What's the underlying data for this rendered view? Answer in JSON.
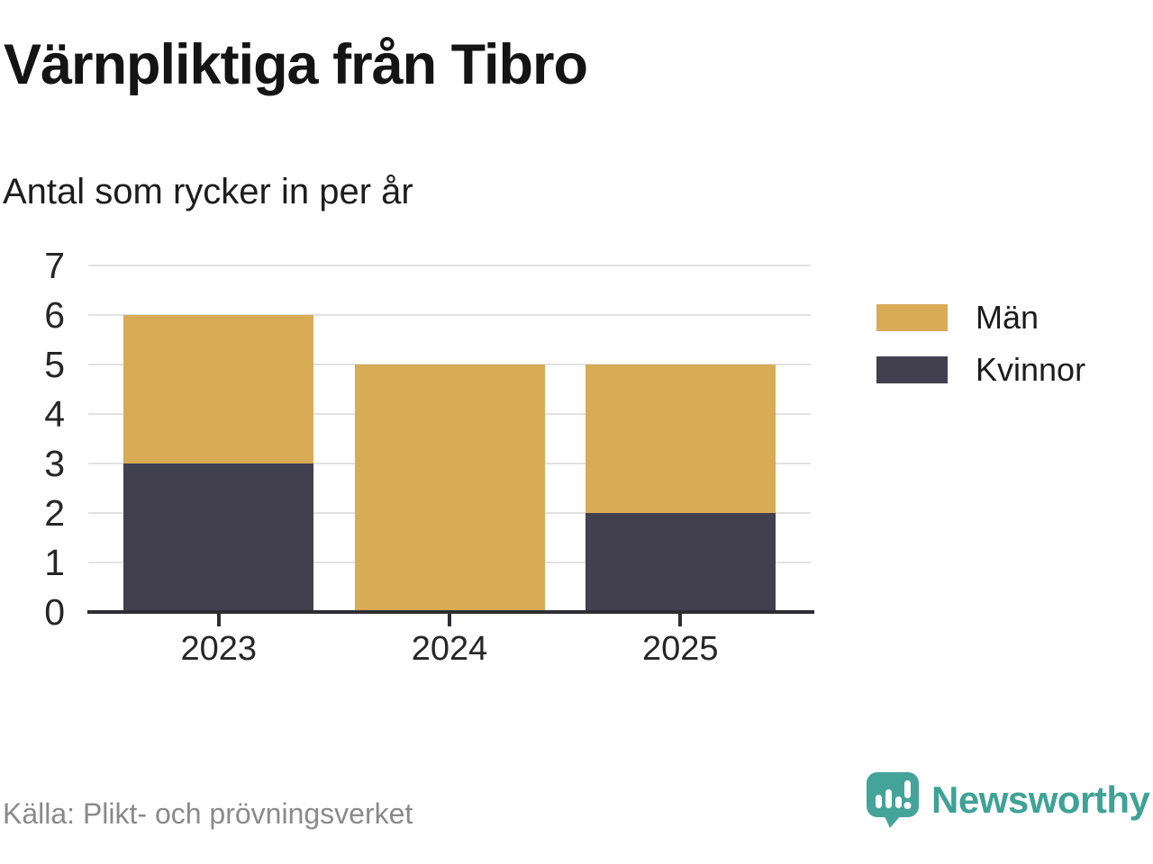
{
  "chart_data": {
    "type": "bar",
    "stacked": true,
    "title": "Värnpliktiga från Tibro",
    "subtitle": "Antal som rycker in per år",
    "categories": [
      "2023",
      "2024",
      "2025"
    ],
    "series": [
      {
        "name": "Män",
        "color": "#D8AB56",
        "values": [
          3,
          5,
          3
        ]
      },
      {
        "name": "Kvinnor",
        "color": "#42404E",
        "values": [
          3,
          0,
          2
        ]
      }
    ],
    "stack_order_bottom_to_top": [
      "Kvinnor",
      "Män"
    ],
    "totals": [
      6,
      5,
      5
    ],
    "xlabel": "",
    "ylabel": "",
    "ylim": [
      0,
      7
    ],
    "yticks": [
      0,
      1,
      2,
      3,
      4,
      5,
      6,
      7
    ],
    "grid": true,
    "legend_position": "right"
  },
  "footer": {
    "source": "Källa: Plikt- och prövningsverket",
    "brand": "Newsworthy"
  },
  "colors": {
    "men": "#D8AB56",
    "women": "#42404E",
    "axis": "#2E2D33",
    "gridline": "#E2E2E2",
    "brand_teal": "#3FA296",
    "source_text": "#8A8A8A"
  }
}
